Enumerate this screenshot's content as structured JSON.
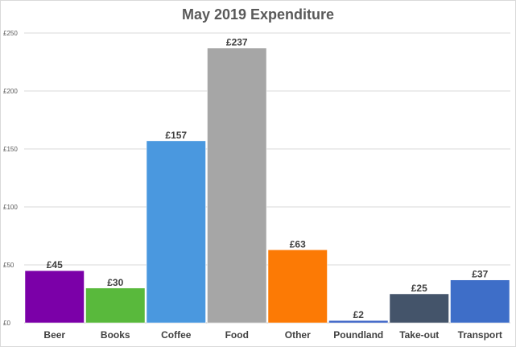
{
  "chart_data": {
    "type": "bar",
    "title": "May 2019 Expenditure",
    "xlabel": "",
    "ylabel": "",
    "categories": [
      "Beer",
      "Books",
      "Coffee",
      "Food",
      "Other",
      "Poundland",
      "Take-out",
      "Transport"
    ],
    "values": [
      45,
      30,
      157,
      237,
      63,
      2,
      25,
      37
    ],
    "data_labels": [
      "£45",
      "£30",
      "£157",
      "£237",
      "£63",
      "£2",
      "£25",
      "£37"
    ],
    "ylim": [
      0,
      250
    ],
    "yticks": [
      0,
      50,
      100,
      150,
      200,
      250
    ],
    "ytick_labels": [
      "£0",
      "£50",
      "£100",
      "£150",
      "£200",
      "£250"
    ],
    "colors": [
      "#7b00a8",
      "#59b93c",
      "#4a98df",
      "#a6a6a6",
      "#fc7a05",
      "#3a62c5",
      "#44546a",
      "#3e6ec8"
    ],
    "grid": true,
    "legend": "none"
  }
}
